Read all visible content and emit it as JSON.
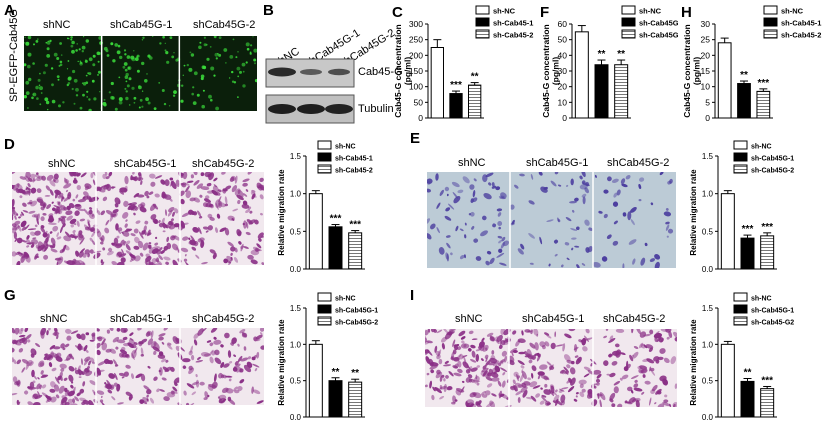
{
  "panels": {
    "A": {
      "letter": "A",
      "side_label": "SP-EGFP-Cab45G",
      "conditions": [
        "shNC",
        "shCab45G-1",
        "shCab45G-2"
      ]
    },
    "B": {
      "letter": "B",
      "lanes": [
        "shNC",
        "shCab45G-1",
        "shCab45G-2"
      ],
      "bands": [
        "Cab45-G",
        "Tubulin"
      ]
    },
    "D": {
      "letter": "D",
      "conditions": [
        "shNC",
        "shCab45G-1",
        "shCab45G-2"
      ]
    },
    "E": {
      "letter": "E",
      "conditions": [
        "shNC",
        "shCab45G-1",
        "shCab45G-2"
      ]
    },
    "G": {
      "letter": "G",
      "conditions": [
        "shNC",
        "shCab45G-1",
        "shCab45G-2"
      ]
    },
    "I": {
      "letter": "I",
      "conditions": [
        "shNC",
        "shCab45G-1",
        "shCab45G-2"
      ]
    }
  },
  "colors": {
    "fluor_bg": "#0b1f0b",
    "fluor_dot": "#39d839",
    "stain_bg": "#f1e8ee",
    "stain_cell": "#8a2f86",
    "giemsa_bg": "#bccbd6",
    "giemsa_cell": "#4a3c9e",
    "bar_black": "#000000",
    "bar_white": "#ffffff",
    "bar_striped": "#8a8a8a"
  },
  "chart_data": [
    {
      "id": "C",
      "type": "bar",
      "letter": "C",
      "categories": [
        "sh-NC",
        "sh-Cab45G-1",
        "sh-Cab45G-2"
      ],
      "values": [
        225,
        78,
        105
      ],
      "errors": [
        25,
        8,
        8
      ],
      "significance": [
        "",
        "***",
        "**"
      ],
      "ylabel": "Cab45-G concentration\n(pg/ml)",
      "ylim": [
        0,
        300
      ],
      "yticks": [
        0,
        50,
        100,
        150,
        200,
        250,
        300
      ],
      "legend": [
        "sh-NC",
        "sh-Cab45-1",
        "sh-Cab45-2"
      ],
      "legend_position": "top-right"
    },
    {
      "id": "F",
      "type": "bar",
      "letter": "F",
      "categories": [
        "sh-NC",
        "sh-Cab45G-1",
        "sh-Cab45G-2"
      ],
      "values": [
        55,
        34,
        34
      ],
      "errors": [
        4,
        3,
        3
      ],
      "significance": [
        "",
        "**",
        "**"
      ],
      "ylabel": "Cab45-G concentration\n(pg/ml)",
      "ylim": [
        0,
        60
      ],
      "yticks": [
        0,
        10,
        20,
        30,
        40,
        50,
        60
      ],
      "legend": [
        "sh-NC",
        "sh-Cab45G-1",
        "sh-Cab45G-2"
      ],
      "legend_position": "top-right"
    },
    {
      "id": "H",
      "type": "bar",
      "letter": "H",
      "categories": [
        "sh-NC",
        "sh-Cab45G-1",
        "sh-Cab45G-2"
      ],
      "values": [
        24,
        11,
        8.5
      ],
      "errors": [
        1.5,
        0.8,
        0.8
      ],
      "significance": [
        "",
        "**",
        "***"
      ],
      "ylabel": "Cab45-G concentration\n(pg/ml)",
      "ylim": [
        0,
        30
      ],
      "yticks": [
        0,
        5,
        10,
        15,
        20,
        25,
        30
      ],
      "legend": [
        "sh-NC",
        "sh-Cab45-1",
        "sh-Cab45-2"
      ],
      "legend_position": "top-right"
    },
    {
      "id": "Dchart",
      "type": "bar",
      "categories": [
        "sh-NC",
        "sh-Cab45G-1",
        "sh-Cab45G-2"
      ],
      "values": [
        1.0,
        0.56,
        0.48
      ],
      "errors": [
        0.04,
        0.03,
        0.03
      ],
      "significance": [
        "",
        "***",
        "***"
      ],
      "ylabel": "Relative migration rate",
      "ylim": [
        0,
        1.5
      ],
      "yticks": [
        0.0,
        0.5,
        1.0,
        1.5
      ],
      "legend": [
        "sh-NC",
        "sh-Cab45-1",
        "sh-Cab45-2"
      ],
      "legend_position": "top-right"
    },
    {
      "id": "Echart",
      "type": "bar",
      "categories": [
        "sh-NC",
        "sh-Cab45G-1",
        "sh-Cab45G-2"
      ],
      "values": [
        1.0,
        0.41,
        0.44
      ],
      "errors": [
        0.04,
        0.04,
        0.04
      ],
      "significance": [
        "",
        "***",
        "***"
      ],
      "ylabel": "Relative migration rate",
      "ylim": [
        0,
        1.5
      ],
      "yticks": [
        0.0,
        0.5,
        1.0,
        1.5
      ],
      "legend": [
        "sh-NC",
        "sh-Cab45G-1",
        "sh-Cab45G-2"
      ],
      "legend_position": "top-right"
    },
    {
      "id": "Gchart",
      "type": "bar",
      "categories": [
        "sh-NC",
        "sh-Cab45G-1",
        "sh-Cab45G-2"
      ],
      "values": [
        1.0,
        0.5,
        0.48
      ],
      "errors": [
        0.05,
        0.04,
        0.04
      ],
      "significance": [
        "",
        "**",
        "**"
      ],
      "ylabel": "Relative migration rate",
      "ylim": [
        0,
        1.5
      ],
      "yticks": [
        0.0,
        0.5,
        1.0,
        1.5
      ],
      "legend": [
        "sh-NC",
        "sh-Cab45G-1",
        "sh-Cab45G-2"
      ],
      "legend_position": "top-right"
    },
    {
      "id": "Ichart",
      "type": "bar",
      "categories": [
        "sh-NC",
        "sh-Cab45G-1",
        "sh-Cab45G-2"
      ],
      "values": [
        1.0,
        0.49,
        0.39
      ],
      "errors": [
        0.04,
        0.04,
        0.03
      ],
      "significance": [
        "",
        "**",
        "***"
      ],
      "ylabel": "Relative migration rate",
      "ylim": [
        0,
        1.5
      ],
      "yticks": [
        0.0,
        0.5,
        1.0,
        1.5
      ],
      "legend": [
        "sh-NC",
        "sh-Cab45G-1",
        "sh-Cab45-G2"
      ],
      "legend_position": "top-right"
    }
  ]
}
